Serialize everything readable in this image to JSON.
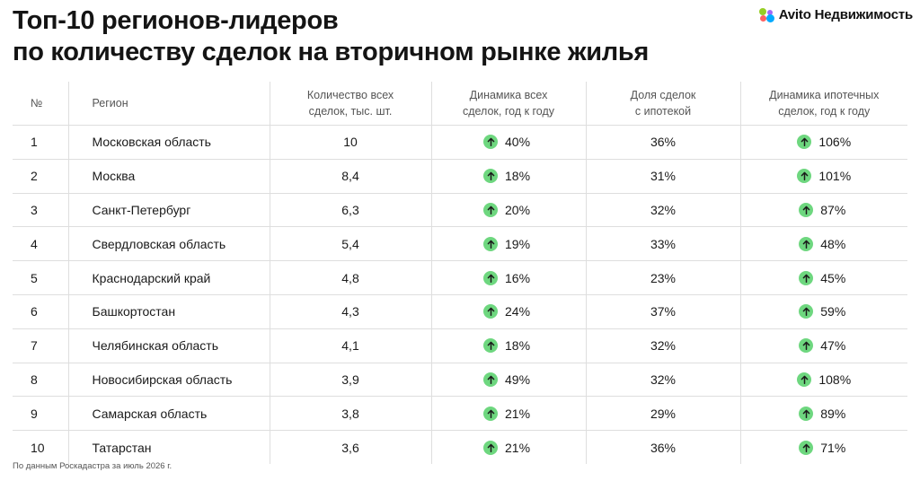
{
  "title": {
    "line1": "Топ-10 регионов-лидеров",
    "line2": "по количеству сделок на вторичном рынке жилья"
  },
  "brand": {
    "name": "Avito Недвижимость",
    "dot_colors": [
      "#97cf26",
      "#a169f7",
      "#ff6163",
      "#00aaff"
    ]
  },
  "colors": {
    "up_icon": "#6ed77f",
    "grid": "#dedede"
  },
  "table": {
    "headers": {
      "num": "№",
      "region": "Регион",
      "deals_line1": "Количество всех",
      "deals_line2": "сделок, тыс. шт.",
      "dyn_line1": "Динамика всех",
      "dyn_line2": "сделок, год к году",
      "share_line1": "Доля сделок",
      "share_line2": "с ипотекой",
      "mort_line1": "Динамика ипотечных",
      "mort_line2": "сделок, год к году"
    },
    "rows": [
      {
        "num": "1",
        "region": "Московская область",
        "deals": "10",
        "dynamics": "40%",
        "share": "36%",
        "mortgage": "106%"
      },
      {
        "num": "2",
        "region": "Москва",
        "deals": "8,4",
        "dynamics": "18%",
        "share": "31%",
        "mortgage": "101%"
      },
      {
        "num": "3",
        "region": "Санкт-Петербург",
        "deals": "6,3",
        "dynamics": "20%",
        "share": "32%",
        "mortgage": "87%"
      },
      {
        "num": "4",
        "region": "Свердловская область",
        "deals": "5,4",
        "dynamics": "19%",
        "share": "33%",
        "mortgage": "48%"
      },
      {
        "num": "5",
        "region": "Краснодарский край",
        "deals": "4,8",
        "dynamics": "16%",
        "share": "23%",
        "mortgage": "45%"
      },
      {
        "num": "6",
        "region": "Башкортостан",
        "deals": "4,3",
        "dynamics": "24%",
        "share": "37%",
        "mortgage": "59%"
      },
      {
        "num": "7",
        "region": "Челябинская область",
        "deals": "4,1",
        "dynamics": "18%",
        "share": "32%",
        "mortgage": "47%"
      },
      {
        "num": "8",
        "region": "Новосибирская область",
        "deals": "3,9",
        "dynamics": "49%",
        "share": "32%",
        "mortgage": "108%"
      },
      {
        "num": "9",
        "region": "Самарская область",
        "deals": "3,8",
        "dynamics": "21%",
        "share": "29%",
        "mortgage": "89%"
      },
      {
        "num": "10",
        "region": "Татарстан",
        "deals": "3,6",
        "dynamics": "21%",
        "share": "36%",
        "mortgage": "71%"
      }
    ]
  },
  "footnote": "По данным Роскадастра за июль 2026 г."
}
